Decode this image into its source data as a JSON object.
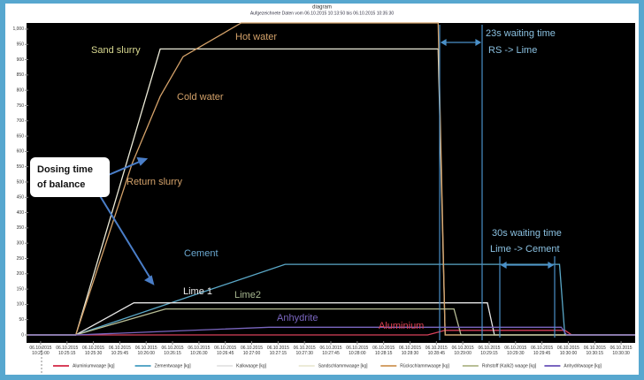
{
  "chart_data": {
    "type": "line",
    "title": "diagram",
    "subtitle": "Aufgezeichnete Daten vom 06.10.2015 10:13:50 bis 06.10.2015 10:35:30",
    "xlim": [
      "06.10.2015 10:24:52",
      "06.10.2015 10:30:38"
    ],
    "xticks": [
      "06.10.2015 10:25:00",
      "06.10.2015 10:25:15",
      "06.10.2015 10:25:30",
      "06.10.2015 10:25:45",
      "06.10.2015 10:26:00",
      "06.10.2015 10:26:15",
      "06.10.2015 10:26:30",
      "06.10.2015 10:26:45",
      "06.10.2015 10:27:00",
      "06.10.2015 10:27:15",
      "06.10.2015 10:27:30",
      "06.10.2015 10:27:45",
      "06.10.2015 10:28:00",
      "06.10.2015 10:28:15",
      "06.10.2015 10:28:30",
      "06.10.2015 10:28:45",
      "06.10.2015 10:29:00",
      "06.10.2015 10:29:15",
      "06.10.2015 10:29:30",
      "06.10.2015 10:29:45",
      "06.10.2015 10:30:00",
      "06.10.2015 10:30:15",
      "06.10.2015 10:30:30"
    ],
    "ylim": [
      -26,
      1020
    ],
    "yticks": [
      0,
      50,
      100,
      150,
      200,
      250,
      300,
      350,
      400,
      450,
      500,
      550,
      600,
      650,
      700,
      750,
      800,
      850,
      900,
      950,
      {
        "value": 1000,
        "label": "1,000"
      }
    ],
    "grid": false,
    "legend": "bottom",
    "series": [
      {
        "name": "Aluminiumwaage [kg]",
        "color": "#d8405a",
        "x": [
          "06.10.2015 10:24:52",
          "06.10.2015 10:28:40",
          "06.10.2015 10:28:50",
          "06.10.2015 10:29:58",
          "06.10.2015 10:30:02",
          "06.10.2015 10:30:38"
        ],
        "values": [
          0,
          0,
          15,
          15,
          0,
          0
        ]
      },
      {
        "name": "Zementwaage [kg]",
        "color": "#5aa8c8",
        "x": [
          "06.10.2015 10:24:52",
          "06.10.2015 10:25:20",
          "06.10.2015 10:27:19",
          "06.10.2015 10:29:55",
          "06.10.2015 10:29:58",
          "06.10.2015 10:30:38"
        ],
        "values": [
          0,
          0,
          231,
          231,
          0,
          0
        ]
      },
      {
        "name": "Kalkwaage [kg]",
        "color": "#e6e6e6",
        "x": [
          "06.10.2015 10:24:52",
          "06.10.2015 10:25:20",
          "06.10.2015 10:25:53",
          "06.10.2015 10:29:14",
          "06.10.2015 10:29:18",
          "06.10.2015 10:30:38"
        ],
        "values": [
          0,
          0,
          105,
          105,
          0,
          0
        ]
      },
      {
        "name": "Sandschlammwaage [kg]",
        "color": "#ecebd8",
        "x": [
          "06.10.2015 10:24:52",
          "06.10.2015 10:25:20",
          "06.10.2015 10:26:08",
          "06.10.2015 10:28:46",
          "06.10.2015 10:28:50",
          "06.10.2015 10:30:38"
        ],
        "values": [
          0,
          0,
          935,
          935,
          0,
          0
        ]
      },
      {
        "name": "Rückschlammwaage [kg]",
        "color": "#d4a26a",
        "x": [
          "06.10.2015 10:24:52",
          "06.10.2015 10:25:20",
          "06.10.2015 10:25:52",
          "06.10.2015 10:26:08",
          "06.10.2015 10:26:21",
          "06.10.2015 10:26:54",
          "06.10.2015 10:28:46",
          "06.10.2015 10:28:50",
          "06.10.2015 10:30:38"
        ],
        "values": [
          0,
          0,
          560,
          780,
          910,
          1020,
          1020,
          0,
          0
        ]
      },
      {
        "name": "Rohstoff (Kalk2) waage [kg]",
        "color": "#b8be96",
        "x": [
          "06.10.2015 10:24:52",
          "06.10.2015 10:25:20",
          "06.10.2015 10:26:11",
          "06.10.2015 10:28:55",
          "06.10.2015 10:28:59",
          "06.10.2015 10:30:38"
        ],
        "values": [
          0,
          0,
          85,
          85,
          0,
          0
        ]
      },
      {
        "name": "Anhydritwaage [kg]",
        "color": "#7a66c0",
        "x": [
          "06.10.2015 10:24:52",
          "06.10.2015 10:25:20",
          "06.10.2015 10:27:10",
          "06.10.2015 10:29:56",
          "06.10.2015 10:29:59",
          "06.10.2015 10:30:38"
        ],
        "values": [
          0,
          0,
          25,
          25,
          0,
          0
        ]
      }
    ],
    "annotations": [
      "Hot water",
      "Sand slurry",
      "Cold water",
      "Return slurry",
      "Cement",
      "Lime 1",
      "Lime2",
      "Anhydrite",
      "Aluminium",
      "23s waiting time",
      "RS -> Lime",
      "30s waiting time",
      "Lime -> Cement",
      "Dosing time",
      "of balance"
    ]
  }
}
